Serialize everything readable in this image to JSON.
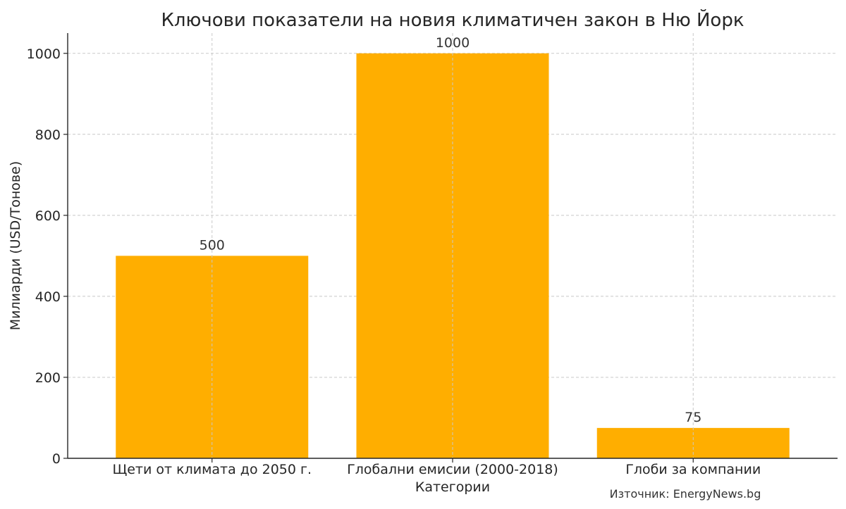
{
  "chart_data": {
    "type": "bar",
    "title": "Ключови показатели на новия климатичен закон в Ню Йорк",
    "xlabel": "Категории",
    "ylabel": "Милиарди (USD/Тонове)",
    "categories": [
      "Щети от климата до 2050 г.",
      "Глобални емисии (2000-2018)",
      "Глоби за компании"
    ],
    "values": [
      500,
      1000,
      75
    ],
    "value_labels": [
      "500",
      "1000",
      "75"
    ],
    "ylim": [
      0,
      1050
    ],
    "yticks": [
      0,
      200,
      400,
      600,
      800,
      1000
    ],
    "ytick_labels": [
      "0",
      "200",
      "400",
      "600",
      "800",
      "1000"
    ],
    "grid": true,
    "bar_color": "#FFAE00",
    "source": "Източник: EnergyNews.bg"
  }
}
